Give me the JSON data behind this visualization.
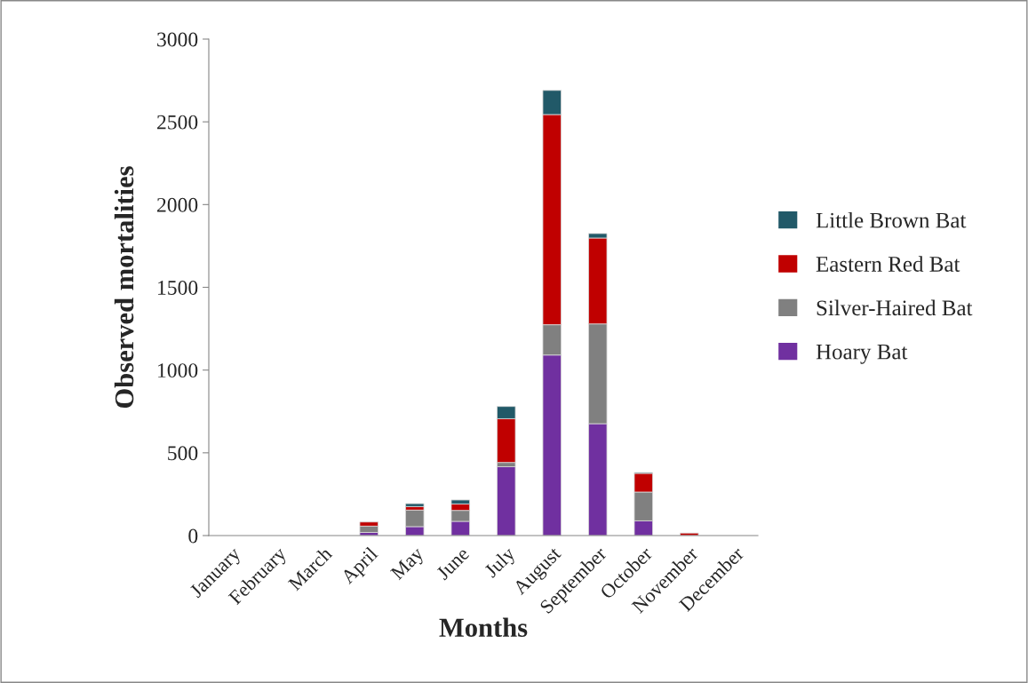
{
  "chart_data": {
    "type": "bar",
    "stacked": true,
    "xlabel": "Months",
    "ylabel": "Observed mortalities",
    "categories": [
      "January",
      "February",
      "March",
      "April",
      "May",
      "June",
      "July",
      "August",
      "September",
      "October",
      "November",
      "December"
    ],
    "series": [
      {
        "name": "Hoary Bat",
        "color": "#7030a0",
        "values": [
          0,
          0,
          0,
          19,
          54,
          86,
          416,
          1091,
          676,
          89,
          0,
          0
        ]
      },
      {
        "name": "Silver-Haired Bat",
        "color": "#808080",
        "values": [
          0,
          0,
          0,
          38,
          100,
          66,
          26,
          183,
          603,
          174,
          null,
          0
        ]
      },
      {
        "name": "Eastern Red Bat",
        "color": "#c00000",
        "values": [
          0,
          0,
          0,
          25,
          21,
          39,
          264,
          1270,
          519,
          113,
          15,
          0
        ]
      },
      {
        "name": "Little Brown Bat",
        "color": "#215968",
        "values": [
          0,
          0,
          0,
          0,
          18,
          24,
          74,
          146,
          27,
          5,
          0,
          0
        ]
      }
    ],
    "ylim": [
      0,
      3000
    ],
    "yticks": [
      0,
      500,
      1000,
      1500,
      2000,
      2500,
      3000
    ],
    "grid": false,
    "legend": "right"
  }
}
